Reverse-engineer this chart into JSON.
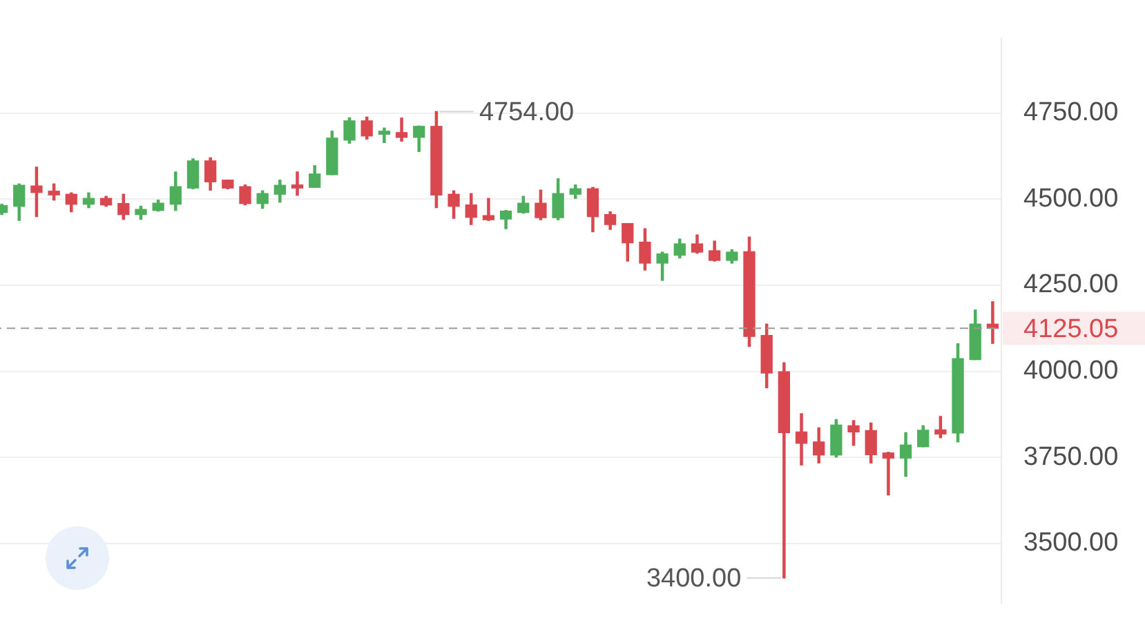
{
  "chart_data": {
    "type": "candlestick",
    "categories": [
      null,
      null,
      null,
      null,
      null,
      null,
      null,
      null,
      null,
      null,
      null,
      null,
      null,
      null,
      null,
      null,
      null,
      null,
      null,
      null,
      null,
      null,
      null,
      null,
      null,
      null,
      null,
      null,
      null,
      null,
      null,
      null,
      null,
      null,
      null,
      null,
      null,
      null,
      null,
      null,
      null,
      null,
      null,
      null,
      null,
      null,
      null,
      null,
      null,
      null,
      null,
      null,
      null,
      null,
      null,
      null,
      null,
      null
    ],
    "ohlc": [
      [
        4461,
        4485,
        4455,
        4481
      ],
      [
        4479,
        4544,
        4438,
        4540
      ],
      [
        4538,
        4593,
        4449,
        4519
      ],
      [
        4523,
        4544,
        4497,
        4512
      ],
      [
        4514,
        4518,
        4463,
        4485
      ],
      [
        4485,
        4518,
        4475,
        4502
      ],
      [
        4502,
        4508,
        4479,
        4483
      ],
      [
        4487,
        4514,
        4441,
        4455
      ],
      [
        4455,
        4479,
        4441,
        4470
      ],
      [
        4467,
        4497,
        4465,
        4488
      ],
      [
        4485,
        4579,
        4467,
        4536
      ],
      [
        4532,
        4617,
        4530,
        4611
      ],
      [
        4611,
        4620,
        4526,
        4550
      ],
      [
        4555,
        4555,
        4530,
        4532
      ],
      [
        4536,
        4541,
        4483,
        4487
      ],
      [
        4487,
        4524,
        4473,
        4516
      ],
      [
        4514,
        4555,
        4491,
        4540
      ],
      [
        4541,
        4579,
        4511,
        4532
      ],
      [
        4534,
        4597,
        4534,
        4573
      ],
      [
        4571,
        4697,
        4571,
        4677
      ],
      [
        4671,
        4736,
        4662,
        4727
      ],
      [
        4727,
        4738,
        4674,
        4683
      ],
      [
        4688,
        4706,
        4664,
        4697
      ],
      [
        4693,
        4735,
        4668,
        4679
      ],
      [
        4679,
        4712,
        4638,
        4711
      ],
      [
        4711,
        4754,
        4475,
        4512
      ],
      [
        4514,
        4524,
        4444,
        4479
      ],
      [
        4483,
        4516,
        4426,
        4447
      ],
      [
        4452,
        4502,
        4438,
        4440
      ],
      [
        4442,
        4467,
        4414,
        4465
      ],
      [
        4461,
        4508,
        4459,
        4488
      ],
      [
        4488,
        4526,
        4440,
        4446
      ],
      [
        4446,
        4559,
        4440,
        4516
      ],
      [
        4514,
        4541,
        4502,
        4530
      ],
      [
        4530,
        4534,
        4405,
        4449
      ],
      [
        4455,
        4463,
        4412,
        4426
      ],
      [
        4429,
        4429,
        4320,
        4373
      ],
      [
        4375,
        4414,
        4294,
        4314
      ],
      [
        4314,
        4346,
        4264,
        4341
      ],
      [
        4337,
        4384,
        4329,
        4370
      ],
      [
        4370,
        4396,
        4343,
        4346
      ],
      [
        4350,
        4378,
        4320,
        4322
      ],
      [
        4322,
        4353,
        4314,
        4346
      ],
      [
        4347,
        4390,
        4072,
        4101
      ],
      [
        4104,
        4137,
        3952,
        3995
      ],
      [
        3999,
        4025,
        3400,
        3822
      ],
      [
        3824,
        3877,
        3728,
        3791
      ],
      [
        3795,
        3836,
        3734,
        3757
      ],
      [
        3757,
        3860,
        3751,
        3844
      ],
      [
        3842,
        3857,
        3785,
        3824
      ],
      [
        3828,
        3850,
        3734,
        3758
      ],
      [
        3763,
        3765,
        3641,
        3748
      ],
      [
        3748,
        3822,
        3695,
        3786
      ],
      [
        3781,
        3842,
        3781,
        3829
      ],
      [
        3830,
        3869,
        3807,
        3818
      ],
      [
        3821,
        4080,
        3795,
        4037
      ],
      [
        4034,
        4178,
        4034,
        4137
      ],
      [
        4137,
        4202,
        4081,
        4125.05
      ]
    ],
    "colors": [
      "#4daf5b",
      "#4daf5b",
      "#d9474f",
      "#d9474f",
      "#d9474f",
      "#4daf5b",
      "#d9474f",
      "#d9474f",
      "#4daf5b",
      "#4daf5b",
      "#4daf5b",
      "#4daf5b",
      "#d9474f",
      "#d9474f",
      "#d9474f",
      "#4daf5b",
      "#4daf5b",
      "#d9474f",
      "#4daf5b",
      "#4daf5b",
      "#4daf5b",
      "#d9474f",
      "#4daf5b",
      "#d9474f",
      "#4daf5b",
      "#d9474f",
      "#d9474f",
      "#d9474f",
      "#d9474f",
      "#4daf5b",
      "#4daf5b",
      "#d9474f",
      "#4daf5b",
      "#4daf5b",
      "#d9474f",
      "#d9474f",
      "#d9474f",
      "#d9474f",
      "#4daf5b",
      "#4daf5b",
      "#d9474f",
      "#d9474f",
      "#4daf5b",
      "#d9474f",
      "#d9474f",
      "#d9474f",
      "#d9474f",
      "#d9474f",
      "#4daf5b",
      "#d9474f",
      "#d9474f",
      "#d9474f",
      "#4daf5b",
      "#4daf5b",
      "#d9474f",
      "#4daf5b",
      "#4daf5b",
      "#d9474f"
    ],
    "ylim": [
      3327,
      4968
    ],
    "yticks": [
      {
        "value": 3500,
        "label": "3500.00"
      },
      {
        "value": 3750,
        "label": "3750.00"
      },
      {
        "value": 4000,
        "label": "4000.00"
      },
      {
        "value": 4250,
        "label": "4250.00"
      },
      {
        "value": 4500,
        "label": "4500.00"
      },
      {
        "value": 4750,
        "label": "4750.00"
      }
    ],
    "tick_labels": "y",
    "grid": "y",
    "ref_lines": [
      {
        "axis": "y",
        "value": 4125.05,
        "label": "4125.05",
        "color": "#9a9a9a",
        "line_style": "dashed"
      }
    ],
    "annotations": [
      "4754.00",
      "3400.00"
    ]
  }
}
